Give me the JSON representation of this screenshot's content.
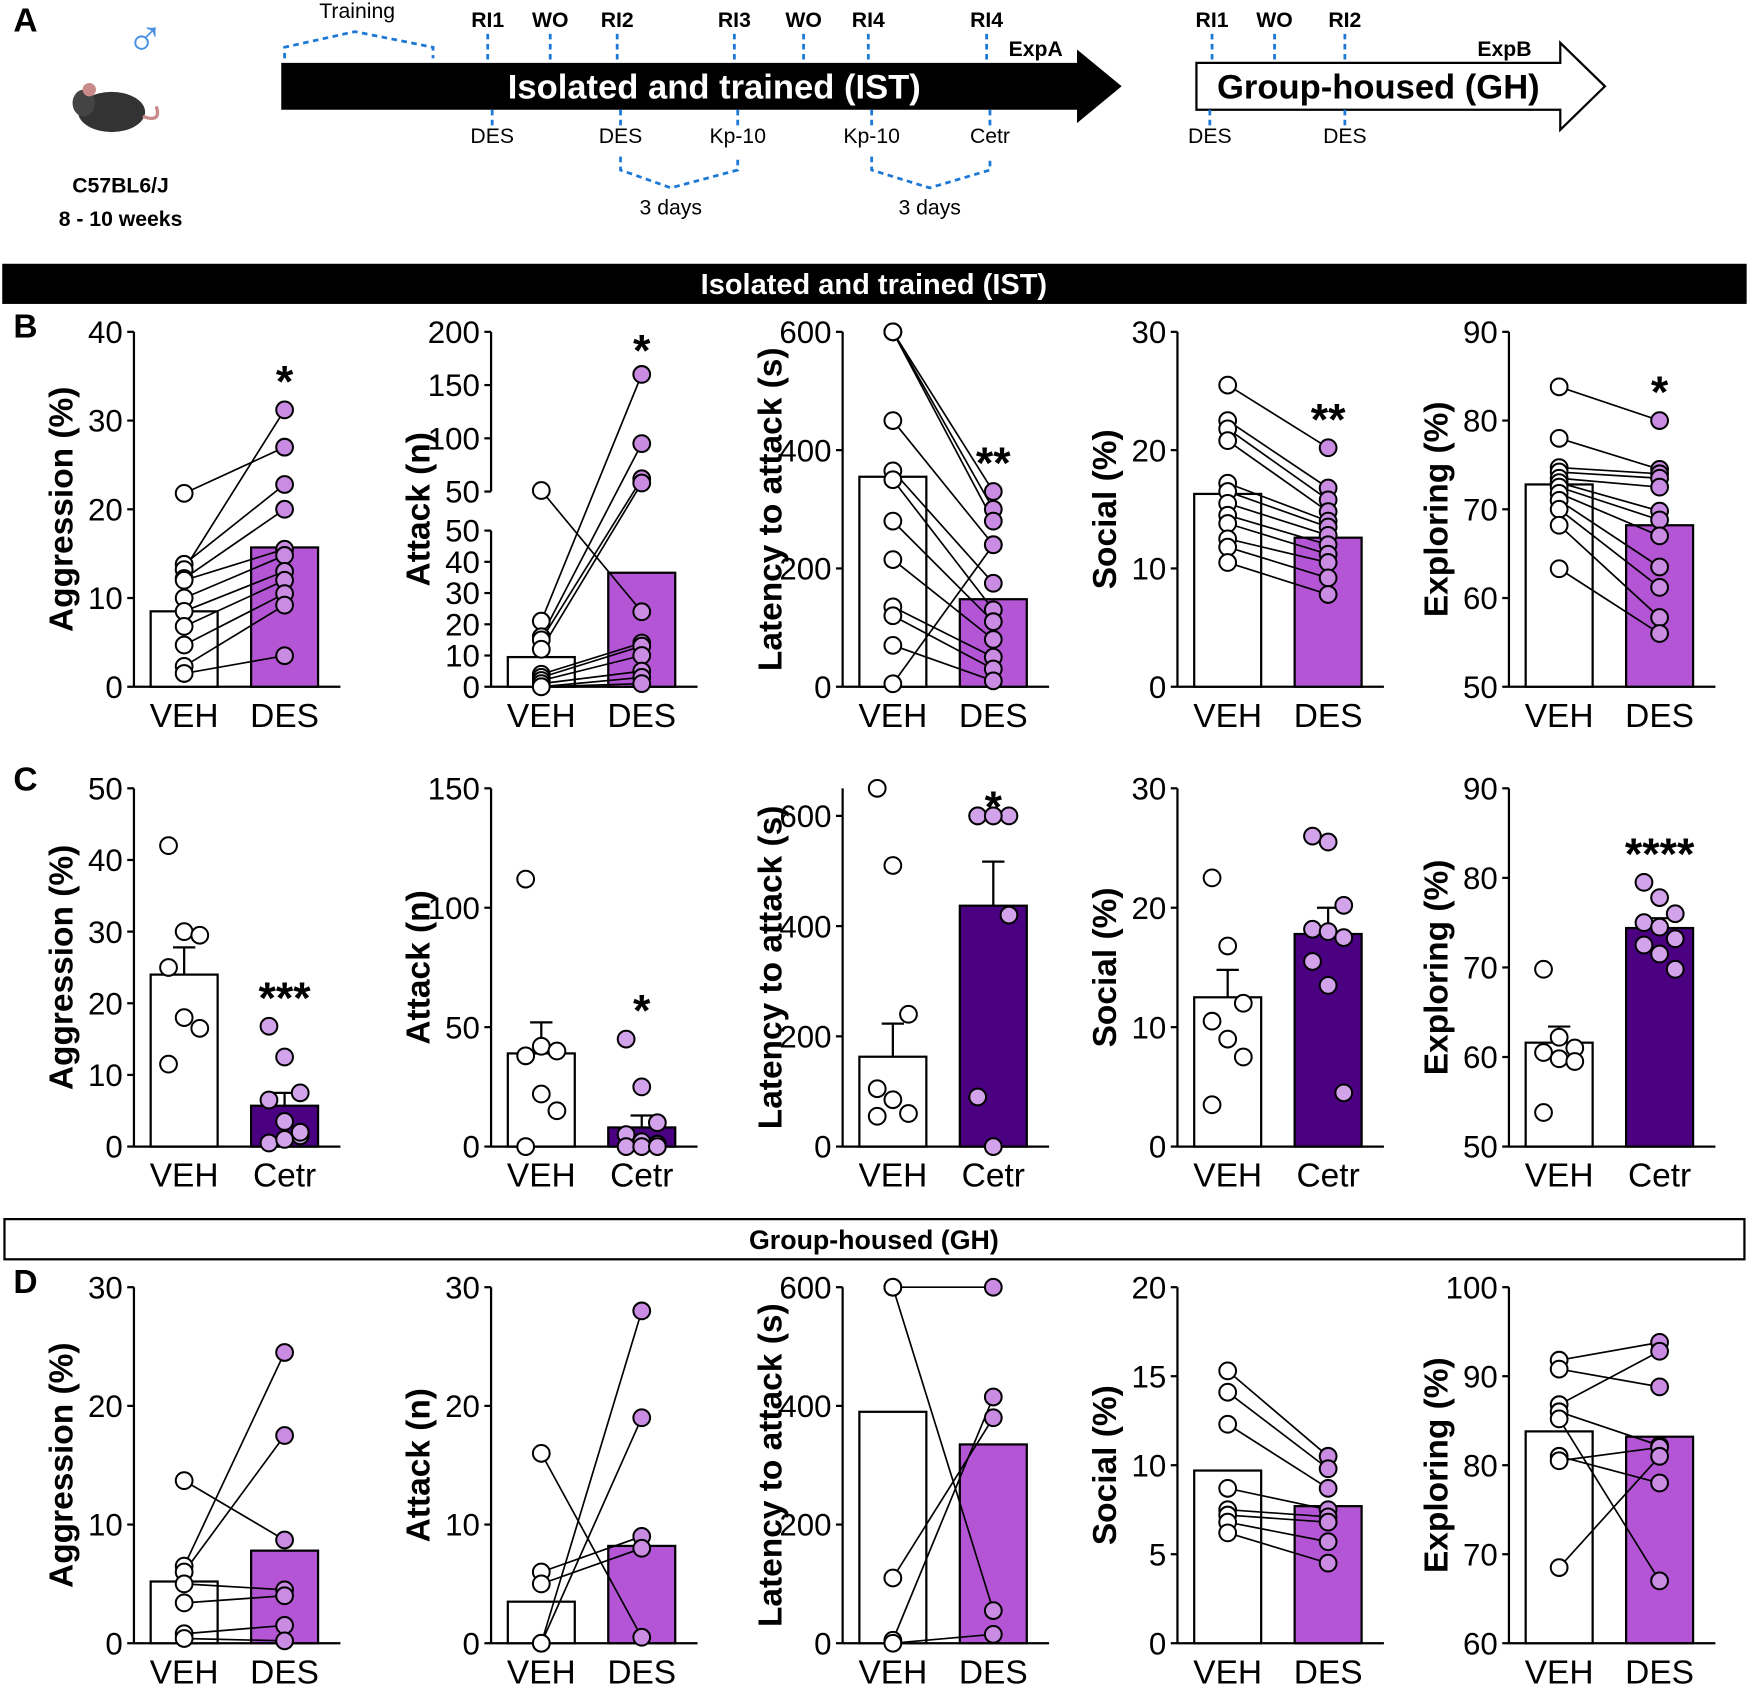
{
  "panel_labels": [
    "A",
    "B",
    "C",
    "D"
  ],
  "sections": [
    "Isolated and trained (IST)",
    "Group-housed (GH)"
  ],
  "diagram": {
    "sex": "♂",
    "strain": "C57BL6/J",
    "age": "8 - 10 weeks",
    "training": "Training",
    "arrow_a": "Isolated and trained (IST)",
    "label_a": "ExpA",
    "top_a": [
      "RI1",
      "WO",
      "RI2",
      "RI3",
      "WO",
      "RI4",
      "RI4"
    ],
    "bottom_a": [
      "DES",
      "DES",
      "Kp-10",
      "Kp-10",
      "Cetr"
    ],
    "days": [
      "3 days",
      "3 days"
    ],
    "arrow_b": "Group-housed (GH)",
    "label_b": "ExpB",
    "top_b": [
      "RI1",
      "WO",
      "RI2"
    ],
    "bottom_b": [
      "DES",
      "DES"
    ]
  },
  "chart_data": [
    {
      "type": "bar",
      "y_label": "Aggression (%)",
      "categories": [
        "VEH",
        "DES"
      ],
      "values": [
        8.5,
        15.7
      ],
      "colors": [
        "#ffffff",
        "#b455d6"
      ],
      "point_colors": [
        "#ffffff",
        "#c98ce2"
      ],
      "paired": true,
      "annotation": "*",
      "ylim": [
        0,
        40
      ],
      "yticks": [
        0,
        10,
        20,
        30,
        40
      ],
      "points": [
        [
          21.8,
          13.8,
          13.2,
          12.2,
          12,
          10,
          8.5,
          6.8,
          4.7,
          2.3,
          1.5
        ],
        [
          27,
          22.8,
          31.2,
          20,
          15.5,
          14.8,
          13,
          12,
          10.5,
          9.2,
          3.5
        ]
      ]
    },
    {
      "type": "bar",
      "y_label": "Attack (n)",
      "categories": [
        "VEH",
        "DES"
      ],
      "values": [
        9.5,
        36.5
      ],
      "colors": [
        "#ffffff",
        "#b455d6"
      ],
      "point_colors": [
        "#ffffff",
        "#c98ce2"
      ],
      "paired": true,
      "annotation": "*",
      "ylim": [
        0,
        50
      ],
      "yticks": [
        0,
        10,
        20,
        30,
        40,
        50
      ],
      "ylim_upper": [
        50,
        200
      ],
      "yticks_upper": [
        50,
        100,
        150,
        200
      ],
      "points": [
        [
          51,
          21,
          16,
          15,
          12,
          4,
          3,
          2,
          1,
          0,
          0
        ],
        [
          24,
          160,
          95,
          62,
          58,
          14,
          13,
          10,
          5,
          3,
          1
        ]
      ]
    },
    {
      "type": "bar",
      "y_label": "Latency to attack (s)",
      "categories": [
        "VEH",
        "DES"
      ],
      "values": [
        355,
        148
      ],
      "colors": [
        "#ffffff",
        "#b455d6"
      ],
      "point_colors": [
        "#ffffff",
        "#c98ce2"
      ],
      "paired": true,
      "annotation": "**",
      "ylim": [
        0,
        600
      ],
      "yticks": [
        0,
        200,
        400,
        600
      ],
      "points": [
        [
          600,
          600,
          600,
          450,
          365,
          350,
          280,
          215,
          135,
          120,
          70,
          5
        ],
        [
          330,
          300,
          280,
          240,
          175,
          130,
          110,
          80,
          50,
          30,
          10,
          240
        ]
      ]
    },
    {
      "type": "bar",
      "y_label": "Social (%)",
      "categories": [
        "VEH",
        "DES"
      ],
      "values": [
        16.3,
        12.6
      ],
      "colors": [
        "#ffffff",
        "#b455d6"
      ],
      "point_colors": [
        "#ffffff",
        "#c98ce2"
      ],
      "paired": true,
      "annotation": "**",
      "ylim": [
        0,
        30
      ],
      "yticks": [
        0,
        10,
        20,
        30
      ],
      "points": [
        [
          25.5,
          22.5,
          21.8,
          20.8,
          17.2,
          16.5,
          15.5,
          14.5,
          13.8,
          12.5,
          11.8,
          10.5
        ],
        [
          20.2,
          16.8,
          15.8,
          14.8,
          14,
          13.5,
          12.8,
          12,
          11.2,
          10.5,
          9.2,
          7.8
        ]
      ]
    },
    {
      "type": "bar",
      "y_label": "Exploring (%)",
      "categories": [
        "VEH",
        "DES"
      ],
      "values": [
        72.8,
        68.2
      ],
      "colors": [
        "#ffffff",
        "#b455d6"
      ],
      "point_colors": [
        "#ffffff",
        "#c98ce2"
      ],
      "paired": true,
      "annotation": "*",
      "ylim": [
        50,
        90
      ],
      "yticks": [
        50,
        60,
        70,
        80,
        90
      ],
      "points": [
        [
          83.8,
          78,
          74.7,
          74.2,
          73.5,
          73,
          72.5,
          71.8,
          71,
          70,
          68.2,
          63.3
        ],
        [
          80,
          74.5,
          74,
          73.5,
          72.5,
          69.8,
          68.8,
          67,
          63.5,
          61.2,
          57.8,
          56
        ]
      ]
    },
    {
      "type": "bar",
      "y_label": "Aggression (%)",
      "categories": [
        "VEH",
        "Cetr"
      ],
      "values": [
        24,
        5.7
      ],
      "errors": [
        3.8,
        1.8
      ],
      "colors": [
        "#ffffff",
        "#4b0082"
      ],
      "point_colors": [
        "#ffffff",
        "#d2a3ea"
      ],
      "annotation": "***",
      "ylim": [
        0,
        50
      ],
      "yticks": [
        0,
        10,
        20,
        30,
        40,
        50
      ],
      "points": [
        [
          42,
          30,
          29.5,
          25,
          18,
          16.5,
          11.5
        ],
        [
          16.8,
          12.5,
          7.5,
          6.5,
          3.5,
          1.5,
          0.5,
          1,
          2
        ]
      ]
    },
    {
      "type": "bar",
      "y_label": "Attack (n)",
      "categories": [
        "VEH",
        "Cetr"
      ],
      "values": [
        39,
        8
      ],
      "errors": [
        13,
        5
      ],
      "colors": [
        "#ffffff",
        "#4b0082"
      ],
      "point_colors": [
        "#ffffff",
        "#d2a3ea"
      ],
      "annotation": "*",
      "ylim": [
        0,
        150
      ],
      "yticks": [
        0,
        50,
        100,
        150
      ],
      "points": [
        [
          112,
          42,
          40,
          38,
          22,
          15,
          0
        ],
        [
          45,
          25,
          10,
          5,
          2,
          1,
          0,
          0,
          0
        ]
      ]
    },
    {
      "type": "bar",
      "y_label": "Latency to attack (s)",
      "categories": [
        "VEH",
        "Cetr"
      ],
      "values": [
        163,
        437
      ],
      "errors": [
        60,
        80
      ],
      "colors": [
        "#ffffff",
        "#4b0082"
      ],
      "point_colors": [
        "#ffffff",
        "#d2a3ea"
      ],
      "annotation": "*",
      "ylim": [
        0,
        650
      ],
      "yticks": [
        0,
        200,
        400,
        600
      ],
      "points": [
        [
          650,
          510,
          240,
          105,
          85,
          60,
          55
        ],
        [
          600,
          600,
          600,
          600,
          600,
          420,
          90,
          0
        ]
      ]
    },
    {
      "type": "bar",
      "y_label": "Social (%)",
      "categories": [
        "VEH",
        "Cetr"
      ],
      "values": [
        12.5,
        17.8
      ],
      "errors": [
        2.3,
        2.2
      ],
      "colors": [
        "#ffffff",
        "#4b0082"
      ],
      "point_colors": [
        "#ffffff",
        "#d2a3ea"
      ],
      "ylim": [
        0,
        30
      ],
      "yticks": [
        0,
        10,
        20,
        30
      ],
      "points": [
        [
          22.5,
          16.8,
          12,
          10.5,
          9,
          7.5,
          3.5
        ],
        [
          26,
          25.5,
          20.2,
          18.2,
          18,
          17.5,
          15.5,
          13.5,
          4.5
        ]
      ]
    },
    {
      "type": "bar",
      "y_label": "Exploring (%)",
      "categories": [
        "VEH",
        "Cetr"
      ],
      "values": [
        61.6,
        74.4
      ],
      "errors": [
        1.8,
        1.1
      ],
      "colors": [
        "#ffffff",
        "#4b0082"
      ],
      "point_colors": [
        "#ffffff",
        "#d2a3ea"
      ],
      "annotation": "****",
      "ylim": [
        50,
        90
      ],
      "yticks": [
        50,
        60,
        70,
        80,
        90
      ],
      "points": [
        [
          69.8,
          62.2,
          61,
          60.5,
          59.8,
          59.5,
          53.8
        ],
        [
          79.5,
          77.8,
          76,
          75,
          74.5,
          73.2,
          72.5,
          71.5,
          69.8
        ]
      ]
    },
    {
      "type": "bar",
      "y_label": "Aggression (%)",
      "categories": [
        "VEH",
        "DES"
      ],
      "values": [
        5.2,
        7.8
      ],
      "colors": [
        "#ffffff",
        "#b455d6"
      ],
      "point_colors": [
        "#ffffff",
        "#c98ce2"
      ],
      "paired": true,
      "ylim": [
        0,
        30
      ],
      "yticks": [
        0,
        10,
        20,
        30
      ],
      "points": [
        [
          13.7,
          6.5,
          6,
          5,
          3.4,
          0.8,
          0.4
        ],
        [
          8.7,
          24.5,
          17.5,
          4.5,
          4,
          1.5,
          0.2
        ]
      ]
    },
    {
      "type": "bar",
      "y_label": "Attack (n)",
      "categories": [
        "VEH",
        "DES"
      ],
      "values": [
        3.5,
        8.2
      ],
      "colors": [
        "#ffffff",
        "#b455d6"
      ],
      "point_colors": [
        "#ffffff",
        "#c98ce2"
      ],
      "paired": true,
      "ylim": [
        0,
        30
      ],
      "yticks": [
        0,
        10,
        20,
        30
      ],
      "points": [
        [
          16,
          6,
          5,
          0,
          0
        ],
        [
          0.5,
          9,
          8,
          28,
          19
        ]
      ]
    },
    {
      "type": "bar",
      "y_label": "Latency to attack (s)",
      "categories": [
        "VEH",
        "DES"
      ],
      "values": [
        390,
        335
      ],
      "colors": [
        "#ffffff",
        "#b455d6"
      ],
      "point_colors": [
        "#ffffff",
        "#c98ce2"
      ],
      "paired": true,
      "ylim": [
        0,
        600
      ],
      "yticks": [
        0,
        200,
        400,
        600
      ],
      "points": [
        [
          600,
          600,
          110,
          5,
          0
        ],
        [
          600,
          55,
          380,
          415,
          15
        ]
      ]
    },
    {
      "type": "bar",
      "y_label": "Social (%)",
      "categories": [
        "VEH",
        "DES"
      ],
      "values": [
        9.7,
        7.7
      ],
      "colors": [
        "#ffffff",
        "#b455d6"
      ],
      "point_colors": [
        "#ffffff",
        "#c98ce2"
      ],
      "paired": true,
      "ylim": [
        0,
        20
      ],
      "yticks": [
        0,
        5,
        10,
        15,
        20
      ],
      "points": [
        [
          15.3,
          14.1,
          12.3,
          8.7,
          7.5,
          7.2,
          6.8,
          6.2
        ],
        [
          10.5,
          9.8,
          8.7,
          7.5,
          7.1,
          6.8,
          5.7,
          4.5
        ]
      ]
    },
    {
      "type": "bar",
      "y_label": "Exploring (%)",
      "categories": [
        "VEH",
        "DES"
      ],
      "values": [
        83.8,
        83.2
      ],
      "colors": [
        "#ffffff",
        "#b455d6"
      ],
      "point_colors": [
        "#ffffff",
        "#c98ce2"
      ],
      "paired": true,
      "ylim": [
        60,
        100
      ],
      "yticks": [
        60,
        70,
        80,
        90,
        100
      ],
      "points": [
        [
          91.8,
          90.8,
          86.8,
          86,
          85.2,
          81,
          80.5,
          68.5
        ],
        [
          93.8,
          88.8,
          92.8,
          82.2,
          67,
          78,
          82,
          81
        ]
      ]
    }
  ]
}
